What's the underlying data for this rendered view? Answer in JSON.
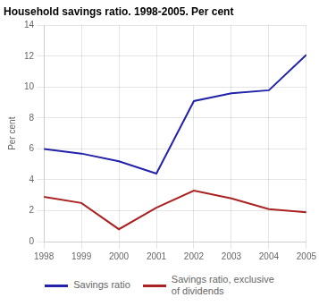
{
  "chart_data": {
    "type": "line",
    "title": "Household savings ratio. 1998-2005. Per cent",
    "y_label": "Per cent",
    "x": [
      1998,
      1999,
      2000,
      2001,
      2002,
      2003,
      2004,
      2005
    ],
    "series": [
      {
        "name": "Savings ratio",
        "color": "#2222aa",
        "values": [
          6.0,
          5.7,
          5.2,
          4.4,
          9.1,
          9.6,
          9.8,
          12.1
        ]
      },
      {
        "name": "Savings ratio, exclusive\nof dividends",
        "color": "#aa2222",
        "values": [
          2.9,
          2.5,
          0.8,
          2.2,
          3.3,
          2.8,
          2.1,
          1.9
        ]
      }
    ],
    "xlim": [
      1998,
      2005
    ],
    "xticks": [
      1998,
      1999,
      2000,
      2001,
      2002,
      2003,
      2004,
      2005
    ],
    "ylim": [
      0,
      14
    ],
    "yticks": [
      0,
      2,
      4,
      6,
      8,
      10,
      12,
      14
    ],
    "grid": true,
    "legend": "bottom"
  }
}
